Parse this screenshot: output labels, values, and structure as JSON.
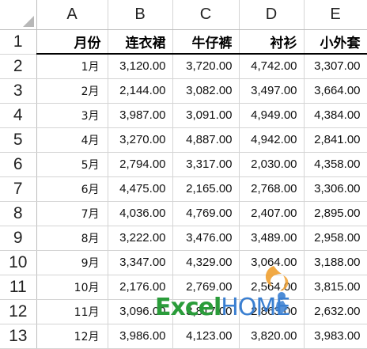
{
  "columns": [
    "A",
    "B",
    "C",
    "D",
    "E"
  ],
  "rows": [
    "1",
    "2",
    "3",
    "4",
    "5",
    "6",
    "7",
    "8",
    "9",
    "10",
    "11",
    "12",
    "13"
  ],
  "headers": [
    "月份",
    "连衣裙",
    "牛仔裤",
    "衬衫",
    "小外套"
  ],
  "data": [
    [
      "1月",
      "3,120.00",
      "3,720.00",
      "4,742.00",
      "3,307.00"
    ],
    [
      "2月",
      "2,144.00",
      "3,082.00",
      "3,497.00",
      "3,664.00"
    ],
    [
      "3月",
      "3,987.00",
      "3,091.00",
      "4,949.00",
      "4,384.00"
    ],
    [
      "4月",
      "3,270.00",
      "4,887.00",
      "4,942.00",
      "2,841.00"
    ],
    [
      "5月",
      "2,794.00",
      "3,317.00",
      "2,030.00",
      "4,358.00"
    ],
    [
      "6月",
      "4,475.00",
      "2,165.00",
      "2,768.00",
      "3,306.00"
    ],
    [
      "7月",
      "4,036.00",
      "4,769.00",
      "2,407.00",
      "2,895.00"
    ],
    [
      "8月",
      "3,222.00",
      "3,476.00",
      "3,489.00",
      "2,958.00"
    ],
    [
      "9月",
      "3,347.00",
      "4,329.00",
      "3,064.00",
      "3,188.00"
    ],
    [
      "10月",
      "2,176.00",
      "2,769.00",
      "2,564.00",
      "3,815.00"
    ],
    [
      "11月",
      "3,096.00",
      "3,817.00",
      "2,863.00",
      "2,632.00"
    ],
    [
      "12月",
      "3,986.00",
      "4,123.00",
      "3,820.00",
      "3,983.00"
    ]
  ],
  "watermark": {
    "part1": "Excel",
    "part2": "HOME",
    "colors": {
      "excel": "#2a9c3a",
      "home": "#3a7fd1",
      "flame": "#f0a030"
    }
  }
}
